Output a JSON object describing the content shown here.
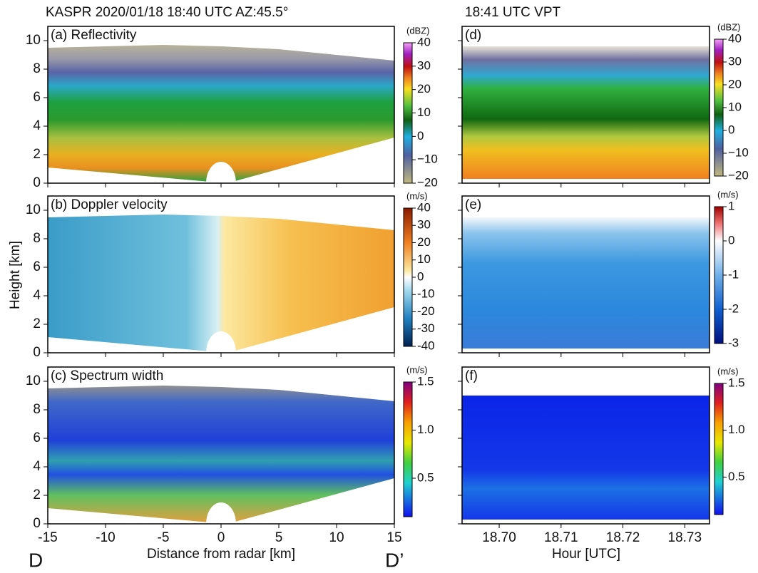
{
  "figure": {
    "left_title": "KASPR 2020/01/18 18:40 UTC AZ:45.5°",
    "right_title": "18:41 UTC VPT",
    "y_label": "Height [km]",
    "left_x_label": "Distance from radar [km]",
    "right_x_label": "Hour [UTC]",
    "left_corner_labels": [
      "D",
      "D’"
    ],
    "left_xlim": [
      -15,
      15
    ],
    "left_xticks": [
      -15,
      -10,
      -5,
      0,
      5,
      10,
      15
    ],
    "right_xlim": [
      18.694,
      18.734
    ],
    "right_xticks": [
      {
        "value": 18.7,
        "label": "18.70"
      },
      18.71,
      18.72,
      18.73
    ],
    "ylim": [
      0,
      11
    ],
    "yticks": [
      0,
      2,
      4,
      6,
      8,
      10
    ],
    "panels": [
      {
        "label": "(a) Reflectivity",
        "unit": "(dBZ)",
        "clim": [
          -20,
          40
        ],
        "cticks": [
          {
            "value": -20,
            "label": "−20"
          },
          {
            "value": -10,
            "label": "−10"
          },
          0,
          10,
          20,
          30,
          40
        ]
      },
      {
        "label": "(b) Doppler velocity",
        "unit": "(m/s)",
        "clim": [
          -40,
          40
        ],
        "cticks": [
          -40,
          -30,
          -20,
          -10,
          0,
          10,
          20,
          30,
          40
        ]
      },
      {
        "label": "(c) Spectrum width",
        "unit": "(m/s)",
        "clim": [
          0.1,
          1.5
        ],
        "cticks": [
          0.5,
          {
            "value": 1.0,
            "label": "1.0"
          },
          1.5
        ]
      },
      {
        "label": "(d)",
        "unit": "(dBZ)",
        "clim": [
          -20,
          40
        ],
        "cticks": [
          {
            "value": -20,
            "label": "−20"
          },
          {
            "value": -10,
            "label": "−10"
          },
          0,
          10,
          20,
          30,
          40
        ]
      },
      {
        "label": "(e)",
        "unit": "(m/s)",
        "clim": [
          -3,
          1
        ],
        "cticks": [
          -3,
          -2,
          -1,
          0,
          1
        ]
      },
      {
        "label": "(f)",
        "unit": "(m/s)",
        "clim": [
          0.1,
          1.5
        ],
        "cticks": [
          0.5,
          {
            "value": 1.0,
            "label": "1.0"
          },
          1.5
        ]
      }
    ]
  }
}
